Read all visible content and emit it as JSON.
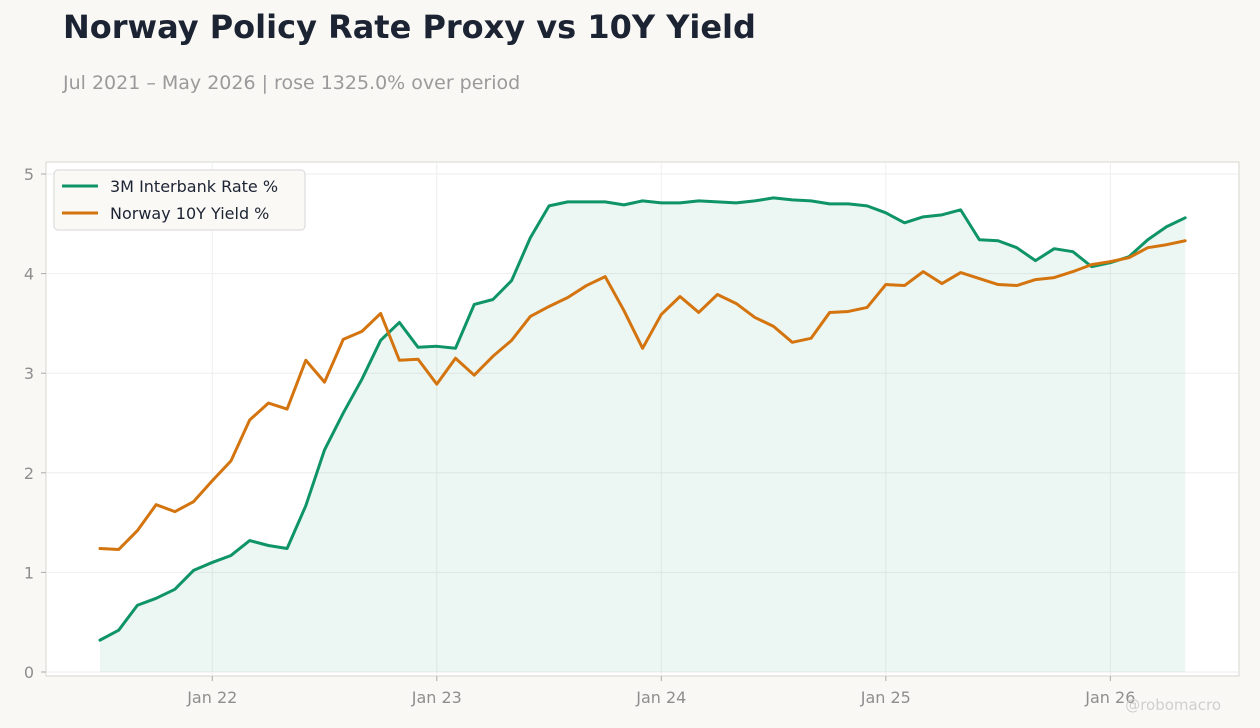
{
  "title": "Norway Policy Rate Proxy vs 10Y Yield",
  "subtitle": "Jul 2021 – May 2026 | rose 1325.0% over period",
  "watermark": "@robomacro",
  "colors": {
    "background": "#f9f8f5",
    "plot_background": "#ffffff",
    "series_1": "#0e9466",
    "series_2": "#d4740f",
    "area_fill": "#0e9466",
    "grid": "#eeeeee",
    "axis": "#cccccc"
  },
  "chart_data": {
    "type": "line",
    "title": "Norway Policy Rate Proxy vs 10Y Yield",
    "subtitle": "Jul 2021 – May 2026 | rose 1325.0% over period",
    "xlabel": "",
    "ylabel": "",
    "x_start": "2021-07",
    "x_end": "2026-05",
    "x_tick_labels": [
      "Jan 22",
      "Jan 23",
      "Jan 24",
      "Jan 25",
      "Jan 26"
    ],
    "x_tick_dates": [
      "2022-01",
      "2023-01",
      "2024-01",
      "2025-01",
      "2026-01"
    ],
    "y_ticks": [
      0,
      1,
      2,
      3,
      4,
      5
    ],
    "ylim": [
      0,
      5.0
    ],
    "grid": true,
    "legend_position": "top-left",
    "area_fill_series": "3M Interbank Rate %",
    "series": [
      {
        "name": "3M Interbank Rate %",
        "color": "#0e9466",
        "values": [
          0.32,
          0.42,
          0.67,
          0.74,
          0.83,
          1.02,
          1.1,
          1.17,
          1.32,
          1.27,
          1.24,
          1.67,
          2.23,
          2.6,
          2.94,
          3.33,
          3.51,
          3.26,
          3.27,
          3.25,
          3.69,
          3.74,
          3.93,
          4.36,
          4.68,
          4.72,
          4.72,
          4.72,
          4.69,
          4.73,
          4.71,
          4.71,
          4.73,
          4.72,
          4.71,
          4.73,
          4.76,
          4.74,
          4.73,
          4.7,
          4.7,
          4.68,
          4.61,
          4.51,
          4.57,
          4.59,
          4.64,
          4.34,
          4.33,
          4.26,
          4.13,
          4.25,
          4.22,
          4.07,
          4.11,
          4.17,
          4.34,
          4.47,
          4.56
        ]
      },
      {
        "name": "Norway 10Y Yield %",
        "color": "#d4740f",
        "values": [
          1.24,
          1.23,
          1.42,
          1.68,
          1.61,
          1.71,
          1.92,
          2.12,
          2.53,
          2.7,
          2.64,
          3.13,
          2.91,
          3.34,
          3.42,
          3.6,
          3.13,
          3.14,
          2.89,
          3.15,
          2.98,
          3.17,
          3.33,
          3.57,
          3.67,
          3.76,
          3.88,
          3.97,
          3.63,
          3.25,
          3.59,
          3.77,
          3.61,
          3.79,
          3.7,
          3.56,
          3.47,
          3.31,
          3.35,
          3.61,
          3.62,
          3.66,
          3.89,
          3.88,
          4.02,
          3.9,
          4.01,
          3.95,
          3.89,
          3.88,
          3.94,
          3.96,
          4.02,
          4.09,
          4.12,
          4.16,
          4.26,
          4.29,
          4.33
        ]
      }
    ]
  }
}
